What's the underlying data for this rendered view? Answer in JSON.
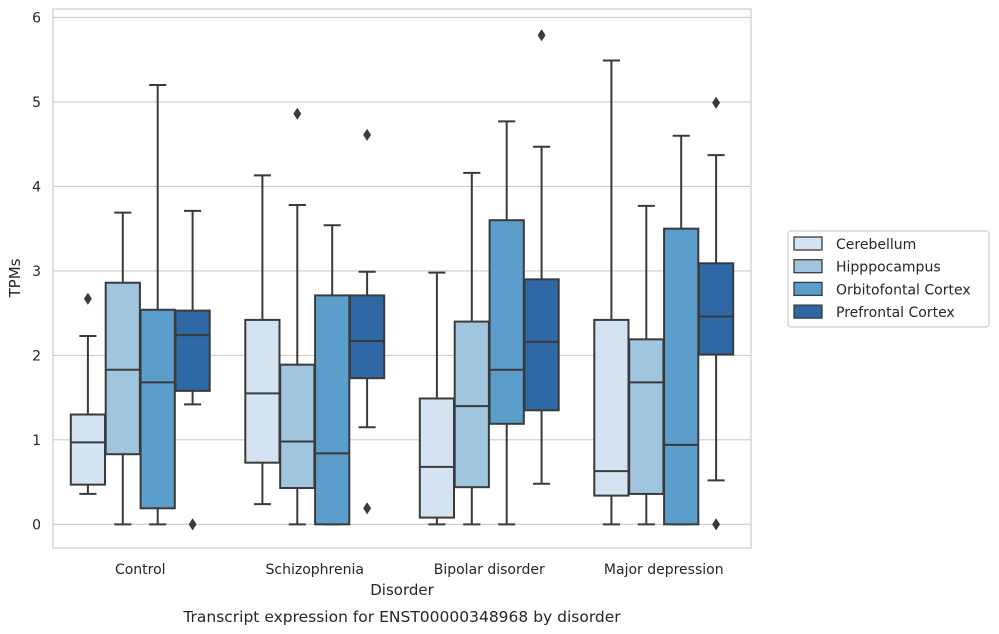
{
  "chart_data": {
    "type": "box",
    "xlabel": "Disorder",
    "ylabel": "TPMs",
    "caption": "Transcript expression for ENST00000348968 by disorder",
    "ylim": [
      -0.28,
      6.1
    ],
    "yticks": [
      0,
      1,
      2,
      3,
      4,
      5,
      6
    ],
    "grid": true,
    "legend_position": "right",
    "categories": [
      "Control",
      "Schizophrenia",
      "Bipolar disorder",
      "Major depression"
    ],
    "series": [
      {
        "name": "Cerebellum",
        "color": "#d4e3f2",
        "boxes": [
          {
            "whislo": 0.36,
            "q1": 0.47,
            "med": 0.97,
            "q3": 1.3,
            "whishi": 2.23,
            "fliers": [
              2.67
            ]
          },
          {
            "whislo": 0.24,
            "q1": 0.73,
            "med": 1.55,
            "q3": 2.42,
            "whishi": 4.13,
            "fliers": []
          },
          {
            "whislo": 0.0,
            "q1": 0.08,
            "med": 0.68,
            "q3": 1.49,
            "whishi": 2.98,
            "fliers": []
          },
          {
            "whislo": 0.0,
            "q1": 0.34,
            "med": 0.63,
            "q3": 2.42,
            "whishi": 5.49,
            "fliers": []
          }
        ]
      },
      {
        "name": "Hipppocampus",
        "color": "#9fc5df",
        "boxes": [
          {
            "whislo": 0.0,
            "q1": 0.83,
            "med": 1.83,
            "q3": 2.86,
            "whishi": 3.69,
            "fliers": []
          },
          {
            "whislo": 0.0,
            "q1": 0.43,
            "med": 0.98,
            "q3": 1.89,
            "whishi": 3.78,
            "fliers": [
              4.86
            ]
          },
          {
            "whislo": 0.0,
            "q1": 0.44,
            "med": 1.4,
            "q3": 2.4,
            "whishi": 4.16,
            "fliers": []
          },
          {
            "whislo": 0.0,
            "q1": 0.36,
            "med": 1.68,
            "q3": 2.19,
            "whishi": 3.77,
            "fliers": []
          }
        ]
      },
      {
        "name": "Orbitofontal Cortex",
        "color": "#5b9dcb",
        "boxes": [
          {
            "whislo": 0.0,
            "q1": 0.19,
            "med": 1.68,
            "q3": 2.54,
            "whishi": 5.2,
            "fliers": []
          },
          {
            "whislo": 0.0,
            "q1": 0.0,
            "med": 0.84,
            "q3": 2.71,
            "whishi": 3.54,
            "fliers": []
          },
          {
            "whislo": 0.0,
            "q1": 1.19,
            "med": 1.83,
            "q3": 3.6,
            "whishi": 4.77,
            "fliers": []
          },
          {
            "whislo": 0.0,
            "q1": 0.0,
            "med": 0.94,
            "q3": 3.5,
            "whishi": 4.6,
            "fliers": []
          }
        ]
      },
      {
        "name": "Prefrontal Cortex",
        "color": "#2e69a6",
        "boxes": [
          {
            "whislo": 1.42,
            "q1": 1.58,
            "med": 2.24,
            "q3": 2.53,
            "whishi": 3.71,
            "fliers": [
              0.0
            ]
          },
          {
            "whislo": 1.15,
            "q1": 1.73,
            "med": 2.17,
            "q3": 2.71,
            "whishi": 2.99,
            "fliers": [
              4.61,
              0.19
            ]
          },
          {
            "whislo": 0.48,
            "q1": 1.35,
            "med": 2.16,
            "q3": 2.9,
            "whishi": 4.47,
            "fliers": [
              5.79
            ]
          },
          {
            "whislo": 0.52,
            "q1": 2.01,
            "med": 2.46,
            "q3": 3.09,
            "whishi": 4.37,
            "fliers": [
              4.99,
              0.0
            ]
          }
        ]
      }
    ]
  }
}
